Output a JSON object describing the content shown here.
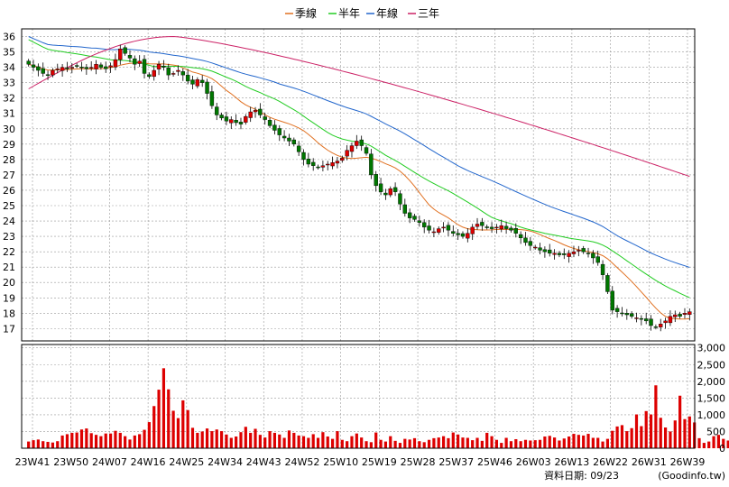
{
  "chart_data": {
    "type": "candlestick",
    "legend": {
      "placement": "top-center",
      "items": [
        {
          "name": "季線",
          "color": "#e07020"
        },
        {
          "name": "半年",
          "color": "#22cc22"
        },
        {
          "name": "年線",
          "color": "#2266cc"
        },
        {
          "name": "三年",
          "color": "#cc2266"
        }
      ]
    },
    "grid": true,
    "price_axis": {
      "position": "left",
      "ylim": [
        16.2,
        36.5
      ],
      "ticks": [
        17,
        18,
        19,
        20,
        21,
        22,
        23,
        24,
        25,
        26,
        27,
        28,
        29,
        30,
        31,
        32,
        33,
        34,
        35,
        36
      ]
    },
    "volume_axis": {
      "position": "right",
      "ylim": [
        0,
        3100
      ],
      "ticks": [
        0,
        500,
        1000,
        1500,
        2000,
        2500,
        3000
      ],
      "tick_labels": [
        "0",
        "500",
        "1,000",
        "1,500",
        "2,000",
        "2,500",
        "3,000"
      ]
    },
    "x_ticks": [
      "23W41",
      "23W50",
      "24W07",
      "24W16",
      "24W25",
      "24W34",
      "24W43",
      "24W52",
      "25W10",
      "25W19",
      "25W28",
      "25W37",
      "25W46",
      "26W03",
      "26W13",
      "26W22",
      "26W31",
      "26W39"
    ],
    "source": "資料日期: 09/23",
    "source_site": "(Goodinfo.tw)",
    "colors": {
      "up": "#dd0000",
      "down": "#007700",
      "volume": "#dd0000",
      "grid": "#999999"
    },
    "price_path": [
      34.2,
      34.0,
      33.8,
      33.6,
      33.5,
      33.8,
      33.9,
      34.0,
      33.9,
      34.0,
      34.1,
      34.0,
      33.9,
      34.0,
      34.2,
      34.0,
      33.9,
      34.1,
      34.5,
      35.2,
      34.9,
      34.6,
      34.2,
      34.4,
      33.6,
      33.4,
      33.8,
      34.2,
      34.0,
      33.5,
      33.6,
      33.8,
      33.5,
      33.1,
      32.9,
      33.2,
      33.0,
      32.3,
      31.5,
      30.9,
      30.7,
      30.5,
      30.6,
      30.4,
      30.3,
      30.8,
      31.1,
      31.2,
      30.9,
      30.6,
      30.2,
      29.9,
      29.6,
      29.4,
      29.2,
      29.0,
      28.5,
      28.0,
      27.7,
      27.6,
      27.5,
      27.6,
      27.7,
      27.8,
      27.9,
      28.1,
      28.6,
      28.9,
      29.2,
      28.9,
      28.4,
      27.0,
      26.3,
      25.9,
      25.7,
      26.1,
      25.9,
      25.1,
      24.5,
      24.2,
      24.1,
      23.9,
      23.6,
      23.4,
      23.3,
      23.5,
      23.6,
      23.4,
      23.2,
      23.1,
      23.0,
      23.2,
      23.6,
      23.8,
      23.7,
      23.6,
      23.5,
      23.6,
      23.7,
      23.5,
      23.4,
      23.2,
      22.9,
      22.6,
      22.4,
      22.3,
      22.1,
      22.0,
      21.9,
      21.9,
      21.8,
      21.8,
      21.9,
      22.0,
      22.1,
      22.0,
      21.9,
      21.6,
      21.3,
      20.5,
      19.4,
      18.2,
      18.1,
      18.0,
      17.9,
      17.8,
      17.7,
      17.6,
      17.5,
      17.2,
      17.1,
      17.3,
      17.5,
      17.8,
      17.9,
      17.8,
      18.0,
      18.1
    ],
    "volume": [
      200,
      240,
      260,
      210,
      190,
      170,
      210,
      380,
      420,
      460,
      470,
      560,
      590,
      450,
      400,
      360,
      440,
      440,
      520,
      460,
      360,
      260,
      380,
      420,
      550,
      780,
      1260,
      1750,
      2390,
      1760,
      1120,
      900,
      1430,
      1140,
      610,
      460,
      500,
      590,
      510,
      560,
      510,
      410,
      310,
      350,
      480,
      640,
      460,
      580,
      400,
      320,
      510,
      460,
      410,
      310,
      530,
      460,
      380,
      360,
      310,
      420,
      310,
      480,
      350,
      280,
      510,
      250,
      210,
      360,
      440,
      320,
      210,
      180,
      470,
      250,
      200,
      360,
      220,
      160,
      280,
      260,
      300,
      210,
      180,
      250,
      300,
      320,
      360,
      300,
      470,
      410,
      320,
      310,
      240,
      310,
      220,
      460,
      360,
      250,
      160,
      310,
      210,
      270,
      210,
      250,
      230,
      240,
      250,
      350,
      370,
      320,
      230,
      290,
      350,
      430,
      400,
      380,
      430,
      310,
      310,
      200,
      280,
      520,
      650,
      690,
      510,
      600,
      1010,
      660,
      1110,
      1010,
      1880,
      910,
      620,
      500,
      830,
      1570,
      870,
      950,
      770,
      300,
      160,
      200,
      360,
      400,
      280,
      230
    ]
  }
}
